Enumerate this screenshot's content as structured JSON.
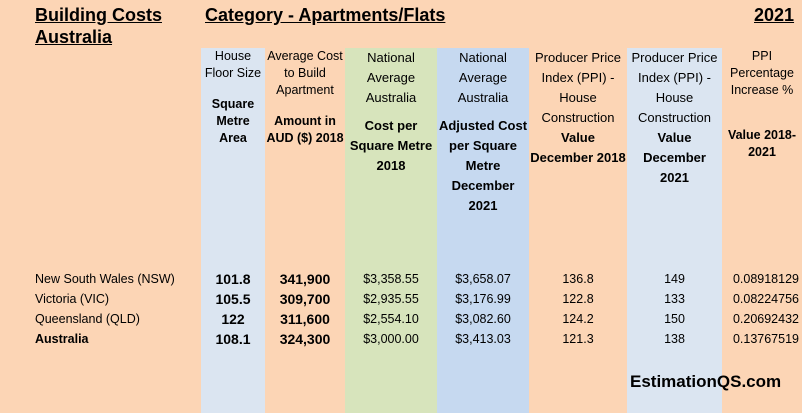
{
  "titles": {
    "left": "Building Costs Australia",
    "center": "Category - Apartments/Flats",
    "year": "2021"
  },
  "headers": [
    {
      "top": "House Floor Size",
      "sub": "Square Metre Area"
    },
    {
      "top": "Average Cost to Build Apartment",
      "sub": "Amount in AUD ($) 2018"
    },
    {
      "top": "National Average Australia",
      "sub": "Cost per Square Metre 2018"
    },
    {
      "top": "National Average Australia",
      "sub": "Adjusted Cost per Square Metre December 2021"
    },
    {
      "top": "Producer Price Index (PPI) - House Construction",
      "sub": "Value December 2018"
    },
    {
      "top": "Producer Price Index (PPI) - House Construction",
      "sub": "Value December 2021"
    },
    {
      "top": "PPI Percentage Increase %",
      "sub": "Value 2018-2021"
    }
  ],
  "rows": [
    {
      "label": "New South Wales (NSW)",
      "size": "101.8",
      "cost": "341,900",
      "avg": "$3,358.55",
      "adj": "$3,658.07",
      "ppi18": "136.8",
      "ppi21": "149",
      "inc": "0.08918129"
    },
    {
      "label": "Victoria (VIC)",
      "size": "105.5",
      "cost": "309,700",
      "avg": "$2,935.55",
      "adj": "$3,176.99",
      "ppi18": "122.8",
      "ppi21": "133",
      "inc": "0.08224756"
    },
    {
      "label": "Queensland (QLD)",
      "size": "122",
      "cost": "311,600",
      "avg": "$2,554.10",
      "adj": "$3,082.60",
      "ppi18": "124.2",
      "ppi21": "150",
      "inc": "0.20692432"
    },
    {
      "label": "Australia",
      "size": "108.1",
      "cost": "324,300",
      "avg": "$3,000.00",
      "adj": "$3,413.03",
      "ppi18": "121.3",
      "ppi21": "138",
      "inc": "0.13767519"
    }
  ],
  "brand": "EstimationQS.com"
}
